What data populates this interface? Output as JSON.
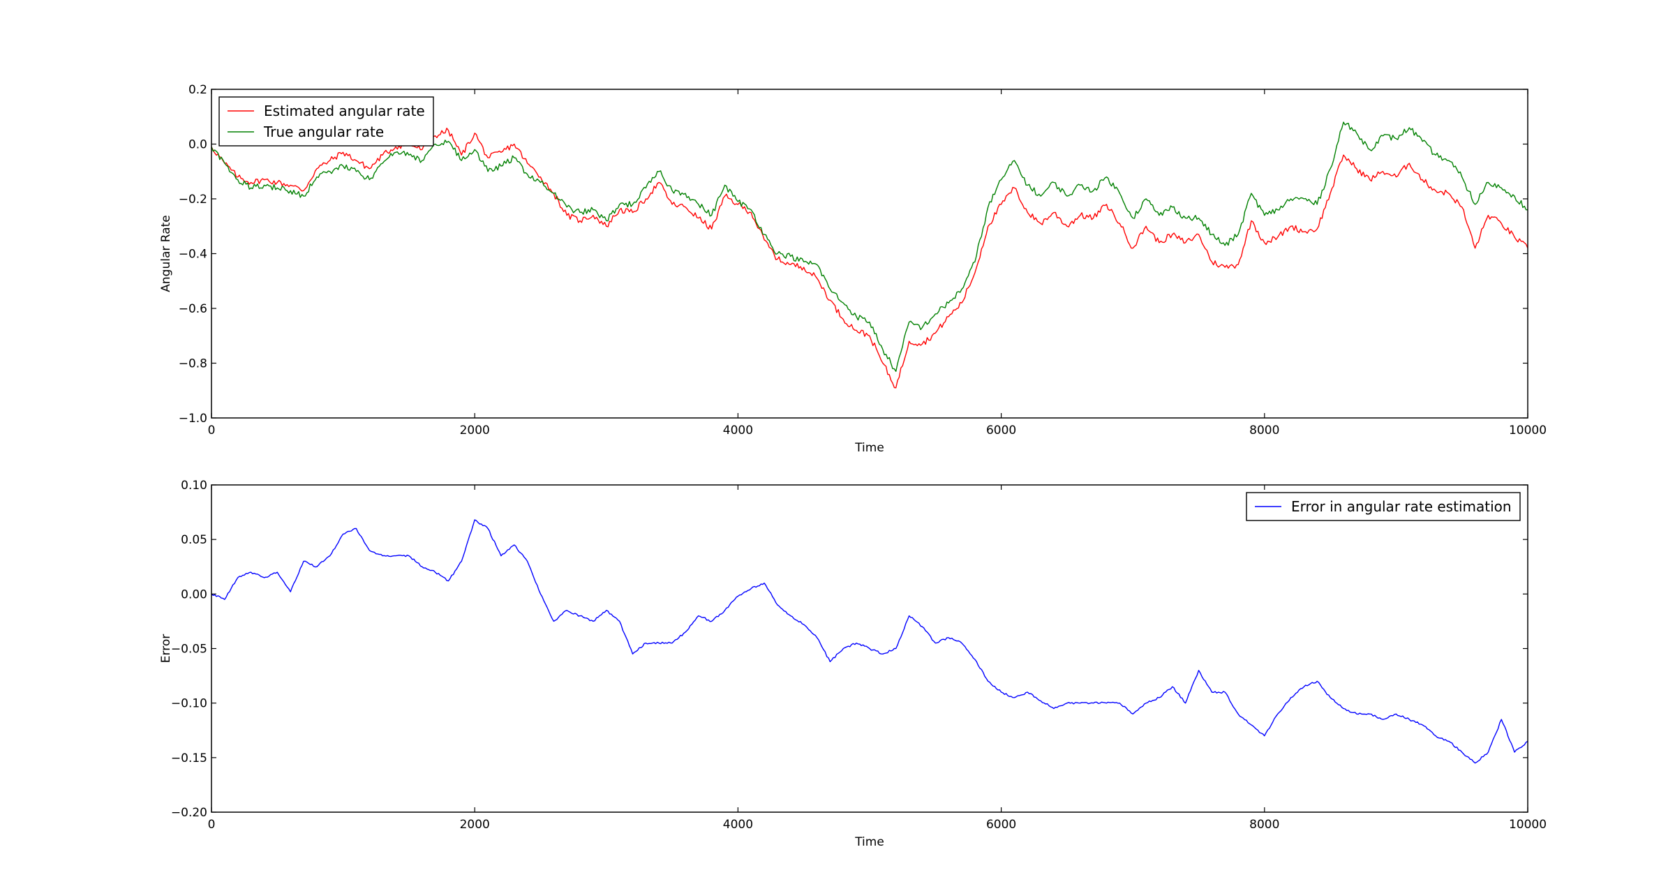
{
  "chart_data": [
    {
      "type": "line",
      "xlabel": "Time",
      "ylabel": "Angular Rate",
      "xlim": [
        0,
        10000
      ],
      "ylim": [
        -1.0,
        0.2
      ],
      "xticks": [
        "0",
        "2000",
        "4000",
        "6000",
        "8000",
        "10000"
      ],
      "yticks": [
        "−1.0",
        "−0.8",
        "−0.6",
        "−0.4",
        "−0.2",
        "0.0",
        "0.2"
      ],
      "legend_position": "upper left",
      "grid": false,
      "series": [
        {
          "name": "Estimated angular rate",
          "color": "#ff0000",
          "x": [
            0,
            100,
            200,
            300,
            400,
            500,
            600,
            700,
            800,
            900,
            1000,
            1100,
            1200,
            1300,
            1400,
            1500,
            1600,
            1700,
            1800,
            1900,
            2000,
            2100,
            2200,
            2300,
            2400,
            2500,
            2600,
            2700,
            2800,
            2900,
            3000,
            3100,
            3200,
            3300,
            3400,
            3500,
            3600,
            3700,
            3800,
            3900,
            4000,
            4100,
            4200,
            4300,
            4400,
            4500,
            4600,
            4700,
            4800,
            4900,
            5000,
            5100,
            5200,
            5300,
            5400,
            5500,
            5600,
            5700,
            5800,
            5900,
            6000,
            6100,
            6200,
            6300,
            6400,
            6500,
            6600,
            6700,
            6800,
            6900,
            7000,
            7100,
            7200,
            7300,
            7400,
            7500,
            7600,
            7700,
            7800,
            7900,
            8000,
            8100,
            8200,
            8300,
            8400,
            8500,
            8600,
            8700,
            8800,
            8900,
            9000,
            9100,
            9200,
            9300,
            9400,
            9500,
            9600,
            9700,
            9800,
            9900,
            10000
          ],
          "y": [
            -0.01,
            -0.07,
            -0.12,
            -0.14,
            -0.13,
            -0.14,
            -0.15,
            -0.17,
            -0.09,
            -0.06,
            -0.03,
            -0.06,
            -0.09,
            -0.04,
            -0.01,
            0.0,
            -0.02,
            0.03,
            0.05,
            -0.04,
            0.04,
            -0.05,
            -0.03,
            0.0,
            -0.07,
            -0.12,
            -0.18,
            -0.26,
            -0.28,
            -0.26,
            -0.3,
            -0.24,
            -0.25,
            -0.2,
            -0.14,
            -0.22,
            -0.23,
            -0.27,
            -0.31,
            -0.19,
            -0.22,
            -0.25,
            -0.35,
            -0.42,
            -0.44,
            -0.45,
            -0.49,
            -0.57,
            -0.64,
            -0.68,
            -0.7,
            -0.8,
            -0.89,
            -0.72,
            -0.73,
            -0.69,
            -0.63,
            -0.58,
            -0.47,
            -0.3,
            -0.22,
            -0.16,
            -0.25,
            -0.29,
            -0.25,
            -0.3,
            -0.26,
            -0.27,
            -0.22,
            -0.29,
            -0.38,
            -0.3,
            -0.36,
            -0.33,
            -0.36,
            -0.33,
            -0.43,
            -0.45,
            -0.44,
            -0.28,
            -0.36,
            -0.34,
            -0.3,
            -0.32,
            -0.31,
            -0.18,
            -0.04,
            -0.09,
            -0.13,
            -0.1,
            -0.12,
            -0.07,
            -0.13,
            -0.17,
            -0.18,
            -0.23,
            -0.38,
            -0.26,
            -0.29,
            -0.34,
            -0.38
          ]
        },
        {
          "name": "True angular rate",
          "color": "#008000",
          "x": [
            0,
            100,
            200,
            300,
            400,
            500,
            600,
            700,
            800,
            900,
            1000,
            1100,
            1200,
            1300,
            1400,
            1500,
            1600,
            1700,
            1800,
            1900,
            2000,
            2100,
            2200,
            2300,
            2400,
            2500,
            2600,
            2700,
            2800,
            2900,
            3000,
            3100,
            3200,
            3300,
            3400,
            3500,
            3600,
            3700,
            3800,
            3900,
            4000,
            4100,
            4200,
            4300,
            4400,
            4500,
            4600,
            4700,
            4800,
            4900,
            5000,
            5100,
            5200,
            5300,
            5400,
            5500,
            5600,
            5700,
            5800,
            5900,
            6000,
            6100,
            6200,
            6300,
            6400,
            6500,
            6600,
            6700,
            6800,
            6900,
            7000,
            7100,
            7200,
            7300,
            7400,
            7500,
            7600,
            7700,
            7800,
            7900,
            8000,
            8100,
            8200,
            8300,
            8400,
            8500,
            8600,
            8700,
            8800,
            8900,
            9000,
            9100,
            9200,
            9300,
            9400,
            9500,
            9600,
            9700,
            9800,
            9900,
            10000
          ],
          "y": [
            -0.01,
            -0.07,
            -0.13,
            -0.16,
            -0.15,
            -0.16,
            -0.17,
            -0.19,
            -0.12,
            -0.1,
            -0.08,
            -0.1,
            -0.13,
            -0.07,
            -0.03,
            -0.04,
            -0.06,
            0.0,
            0.01,
            -0.06,
            -0.02,
            -0.1,
            -0.08,
            -0.05,
            -0.11,
            -0.14,
            -0.18,
            -0.23,
            -0.25,
            -0.24,
            -0.28,
            -0.22,
            -0.22,
            -0.16,
            -0.1,
            -0.17,
            -0.18,
            -0.22,
            -0.26,
            -0.15,
            -0.21,
            -0.24,
            -0.33,
            -0.4,
            -0.41,
            -0.43,
            -0.44,
            -0.53,
            -0.58,
            -0.63,
            -0.65,
            -0.75,
            -0.83,
            -0.65,
            -0.67,
            -0.62,
            -0.58,
            -0.53,
            -0.43,
            -0.23,
            -0.13,
            -0.06,
            -0.15,
            -0.19,
            -0.14,
            -0.19,
            -0.15,
            -0.17,
            -0.12,
            -0.18,
            -0.27,
            -0.2,
            -0.26,
            -0.23,
            -0.27,
            -0.27,
            -0.33,
            -0.37,
            -0.33,
            -0.18,
            -0.26,
            -0.24,
            -0.2,
            -0.2,
            -0.22,
            -0.09,
            0.08,
            0.04,
            -0.02,
            0.03,
            0.02,
            0.06,
            0.01,
            -0.04,
            -0.06,
            -0.12,
            -0.22,
            -0.14,
            -0.16,
            -0.19,
            -0.24
          ]
        }
      ]
    },
    {
      "type": "line",
      "xlabel": "Time",
      "ylabel": "Error",
      "xlim": [
        0,
        10000
      ],
      "ylim": [
        -0.2,
        0.1
      ],
      "xticks": [
        "0",
        "2000",
        "4000",
        "6000",
        "8000",
        "10000"
      ],
      "yticks": [
        "−0.20",
        "−0.15",
        "−0.10",
        "−0.05",
        "0.00",
        "0.05",
        "0.10"
      ],
      "legend_position": "upper right",
      "grid": false,
      "series": [
        {
          "name": "Error in angular rate estimation",
          "color": "#0000ff",
          "x": [
            0,
            100,
            200,
            300,
            400,
            500,
            600,
            700,
            800,
            900,
            1000,
            1100,
            1200,
            1300,
            1400,
            1500,
            1600,
            1700,
            1800,
            1900,
            2000,
            2100,
            2200,
            2300,
            2400,
            2500,
            2600,
            2700,
            2800,
            2900,
            3000,
            3100,
            3200,
            3300,
            3400,
            3500,
            3600,
            3700,
            3800,
            3900,
            4000,
            4100,
            4200,
            4300,
            4400,
            4500,
            4600,
            4700,
            4800,
            4900,
            5000,
            5100,
            5200,
            5300,
            5400,
            5500,
            5600,
            5700,
            5800,
            5900,
            6000,
            6100,
            6200,
            6300,
            6400,
            6500,
            6600,
            6700,
            6800,
            6900,
            7000,
            7100,
            7200,
            7300,
            7400,
            7500,
            7600,
            7700,
            7800,
            7900,
            8000,
            8100,
            8200,
            8300,
            8400,
            8500,
            8600,
            8700,
            8800,
            8900,
            9000,
            9100,
            9200,
            9300,
            9400,
            9500,
            9600,
            9700,
            9800,
            9900,
            10000
          ],
          "y": [
            0.0,
            -0.005,
            0.015,
            0.02,
            0.015,
            0.02,
            0.002,
            0.03,
            0.025,
            0.035,
            0.055,
            0.06,
            0.04,
            0.035,
            0.035,
            0.035,
            0.025,
            0.02,
            0.012,
            0.03,
            0.068,
            0.06,
            0.035,
            0.045,
            0.03,
            0.0,
            -0.025,
            -0.015,
            -0.02,
            -0.025,
            -0.015,
            -0.025,
            -0.055,
            -0.045,
            -0.045,
            -0.045,
            -0.035,
            -0.02,
            -0.025,
            -0.015,
            -0.002,
            0.005,
            0.01,
            -0.01,
            -0.02,
            -0.028,
            -0.04,
            -0.062,
            -0.05,
            -0.045,
            -0.05,
            -0.055,
            -0.05,
            -0.02,
            -0.03,
            -0.045,
            -0.04,
            -0.045,
            -0.06,
            -0.08,
            -0.09,
            -0.095,
            -0.09,
            -0.098,
            -0.105,
            -0.1,
            -0.1,
            -0.1,
            -0.1,
            -0.1,
            -0.11,
            -0.1,
            -0.095,
            -0.085,
            -0.1,
            -0.07,
            -0.09,
            -0.09,
            -0.11,
            -0.12,
            -0.13,
            -0.11,
            -0.095,
            -0.085,
            -0.08,
            -0.095,
            -0.105,
            -0.11,
            -0.11,
            -0.115,
            -0.11,
            -0.115,
            -0.12,
            -0.13,
            -0.135,
            -0.145,
            -0.155,
            -0.145,
            -0.115,
            -0.145,
            -0.135
          ]
        }
      ]
    }
  ]
}
